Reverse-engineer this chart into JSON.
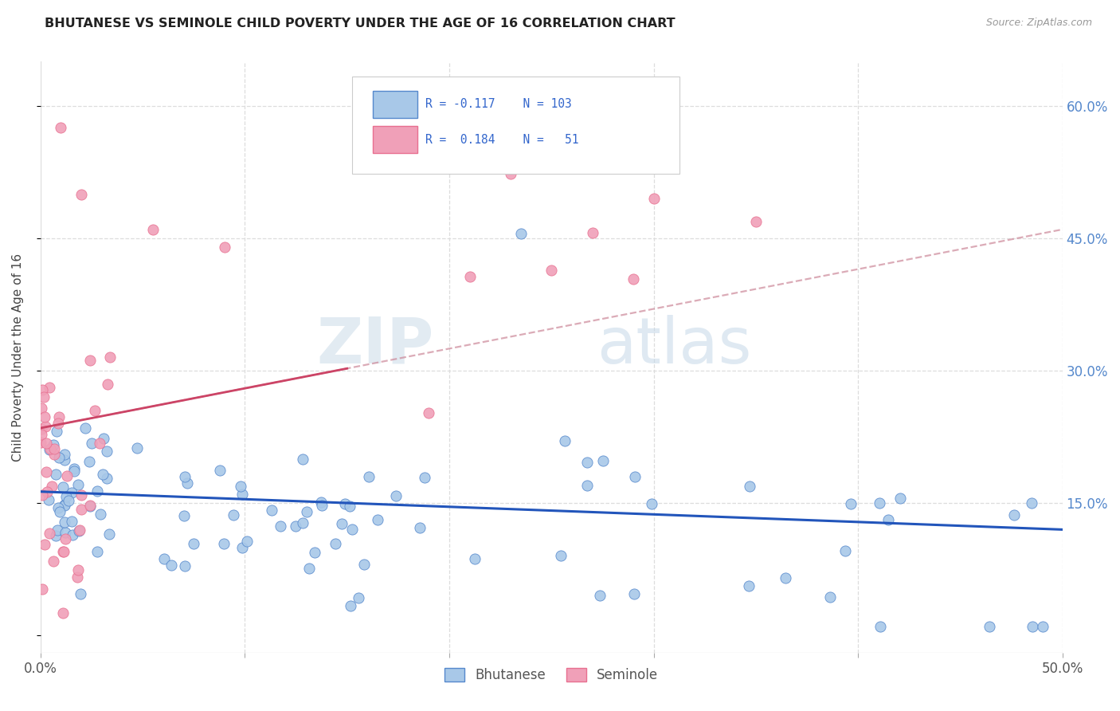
{
  "title": "BHUTANESE VS SEMINOLE CHILD POVERTY UNDER THE AGE OF 16 CORRELATION CHART",
  "source": "Source: ZipAtlas.com",
  "ylabel": "Child Poverty Under the Age of 16",
  "xlim": [
    0.0,
    0.5
  ],
  "ylim": [
    -0.02,
    0.65
  ],
  "color_bhutanese": "#a8c8e8",
  "color_seminole": "#f0a0b8",
  "color_bhutanese_border": "#5588cc",
  "color_seminole_border": "#e87090",
  "color_bhutanese_line": "#2255bb",
  "color_seminole_line": "#cc4466",
  "color_seminole_dashed": "#cc8899",
  "watermark_zip": "ZIP",
  "watermark_atlas": "atlas",
  "legend_text_blue": "#3366cc",
  "grid_color": "#dddddd",
  "tick_color": "#5588cc"
}
